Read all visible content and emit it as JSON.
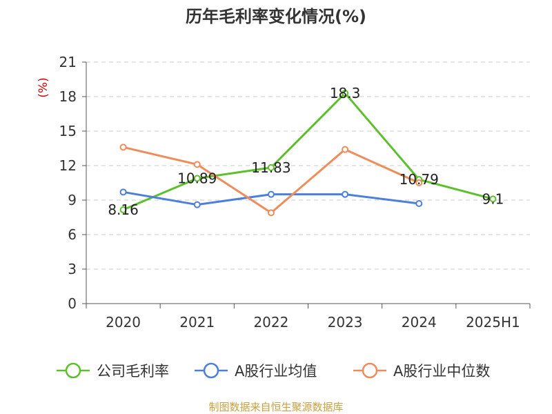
{
  "chart_data": {
    "type": "line",
    "title": "历年毛利率变化情况(%)",
    "ylabel": "(%)",
    "xlabel": "",
    "categories": [
      "2020",
      "2021",
      "2022",
      "2023",
      "2024",
      "2025H1"
    ],
    "ylim": [
      0,
      21
    ],
    "yticks": [
      0,
      3,
      6,
      9,
      12,
      15,
      18,
      21
    ],
    "grid": true,
    "legend_position": "bottom",
    "series": [
      {
        "name": "公司毛利率",
        "color": "#5cc02a",
        "values": [
          8.16,
          10.89,
          11.83,
          18.3,
          10.79,
          9.1
        ],
        "labels": [
          "8.16",
          "10.89",
          "11.83",
          "18.3",
          "10.79",
          "9.1"
        ]
      },
      {
        "name": "A股行业均值",
        "color": "#4a7fdc",
        "values": [
          9.7,
          8.6,
          9.5,
          9.5,
          8.7,
          null
        ]
      },
      {
        "name": "A股行业中位数",
        "color": "#f08c5a",
        "values": [
          13.6,
          12.1,
          7.9,
          13.4,
          10.5,
          null
        ]
      }
    ],
    "source": "制图数据来自恒生聚源数据库"
  }
}
